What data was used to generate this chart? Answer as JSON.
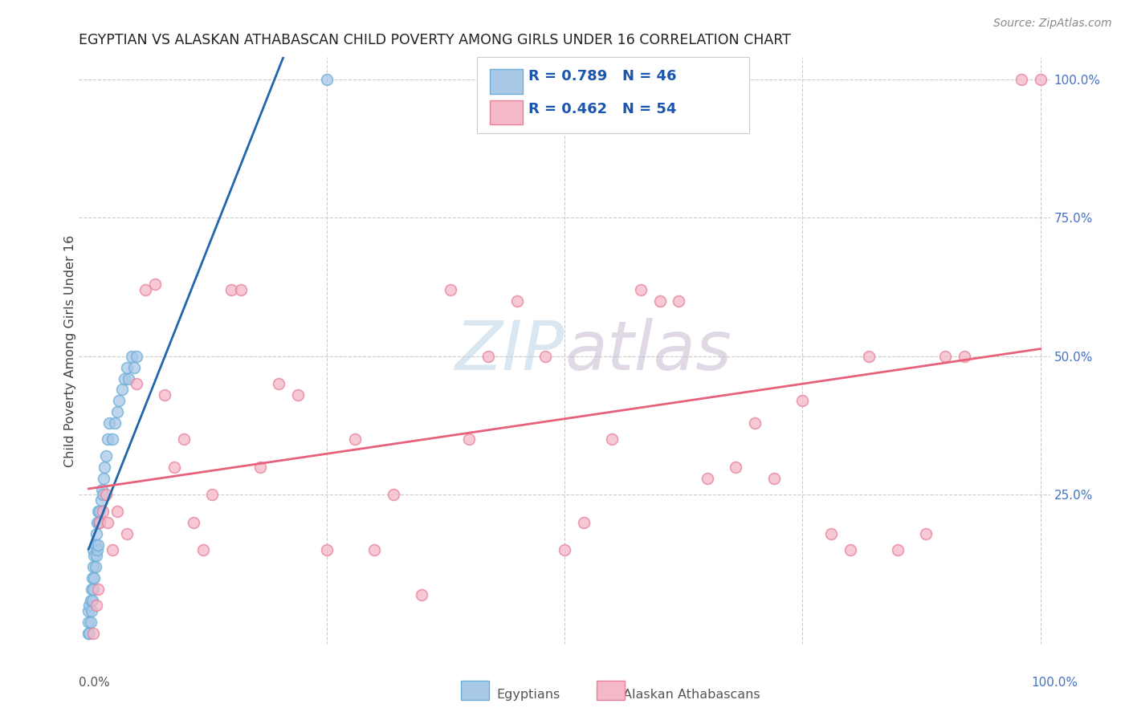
{
  "title": "EGYPTIAN VS ALASKAN ATHABASCAN CHILD POVERTY AMONG GIRLS UNDER 16 CORRELATION CHART",
  "source": "Source: ZipAtlas.com",
  "ylabel": "Child Poverty Among Girls Under 16",
  "watermark_zip": "ZIP",
  "watermark_atlas": "atlas",
  "egyptian_color": "#a8c8e8",
  "egyptian_edge_color": "#6baed6",
  "athabascan_color": "#f4b8c8",
  "athabascan_edge_color": "#e8809a",
  "egyptian_line_color": "#2166ac",
  "athabascan_line_color": "#e8607a",
  "background_color": "#ffffff",
  "grid_color": "#cccccc",
  "right_tick_color": "#4472c4",
  "title_color": "#222222",
  "source_color": "#888888",
  "ylabel_color": "#444444",
  "legend_text_color": "#1a56b0",
  "bottom_label_color": "#555555",
  "egyptian_x": [
    0.0,
    0.0,
    0.0,
    0.001,
    0.001,
    0.002,
    0.002,
    0.003,
    0.003,
    0.004,
    0.004,
    0.005,
    0.005,
    0.005,
    0.006,
    0.006,
    0.007,
    0.007,
    0.008,
    0.008,
    0.009,
    0.009,
    0.01,
    0.01,
    0.011,
    0.012,
    0.013,
    0.014,
    0.015,
    0.016,
    0.017,
    0.018,
    0.02,
    0.022,
    0.025,
    0.028,
    0.03,
    0.032,
    0.035,
    0.038,
    0.04,
    0.042,
    0.045,
    0.048,
    0.05,
    0.25
  ],
  "egyptian_y": [
    0.0,
    0.02,
    0.04,
    0.0,
    0.05,
    0.02,
    0.06,
    0.04,
    0.08,
    0.06,
    0.1,
    0.08,
    0.12,
    0.15,
    0.1,
    0.14,
    0.12,
    0.16,
    0.14,
    0.18,
    0.15,
    0.2,
    0.16,
    0.22,
    0.2,
    0.22,
    0.24,
    0.26,
    0.25,
    0.28,
    0.3,
    0.32,
    0.35,
    0.38,
    0.35,
    0.38,
    0.4,
    0.42,
    0.44,
    0.46,
    0.48,
    0.46,
    0.5,
    0.48,
    0.5,
    1.0
  ],
  "athabascan_x": [
    0.005,
    0.008,
    0.01,
    0.012,
    0.015,
    0.018,
    0.02,
    0.025,
    0.03,
    0.04,
    0.05,
    0.06,
    0.07,
    0.08,
    0.09,
    0.1,
    0.11,
    0.12,
    0.13,
    0.15,
    0.16,
    0.18,
    0.2,
    0.22,
    0.25,
    0.28,
    0.3,
    0.32,
    0.35,
    0.38,
    0.4,
    0.42,
    0.45,
    0.48,
    0.5,
    0.52,
    0.55,
    0.58,
    0.6,
    0.62,
    0.65,
    0.68,
    0.7,
    0.72,
    0.75,
    0.78,
    0.8,
    0.82,
    0.85,
    0.88,
    0.9,
    0.92,
    0.98,
    1.0
  ],
  "athabascan_y": [
    0.0,
    0.05,
    0.08,
    0.2,
    0.22,
    0.25,
    0.2,
    0.15,
    0.22,
    0.18,
    0.45,
    0.62,
    0.63,
    0.43,
    0.3,
    0.35,
    0.2,
    0.15,
    0.25,
    0.62,
    0.62,
    0.3,
    0.45,
    0.43,
    0.15,
    0.35,
    0.15,
    0.25,
    0.07,
    0.62,
    0.35,
    0.5,
    0.6,
    0.5,
    0.15,
    0.2,
    0.35,
    0.62,
    0.6,
    0.6,
    0.28,
    0.3,
    0.38,
    0.28,
    0.42,
    0.18,
    0.15,
    0.5,
    0.15,
    0.18,
    0.5,
    0.5,
    1.0,
    1.0
  ],
  "xlim": [
    -0.01,
    1.01
  ],
  "ylim": [
    -0.02,
    1.04
  ],
  "xticks": [
    0.0,
    0.25,
    0.5,
    0.75,
    1.0
  ],
  "yticks_right": [
    0.0,
    0.25,
    0.5,
    0.75,
    1.0
  ],
  "ytick_labels_right": [
    "",
    "25.0%",
    "50.0%",
    "75.0%",
    "100.0%"
  ],
  "marker_size": 100,
  "line_width": 2.0
}
